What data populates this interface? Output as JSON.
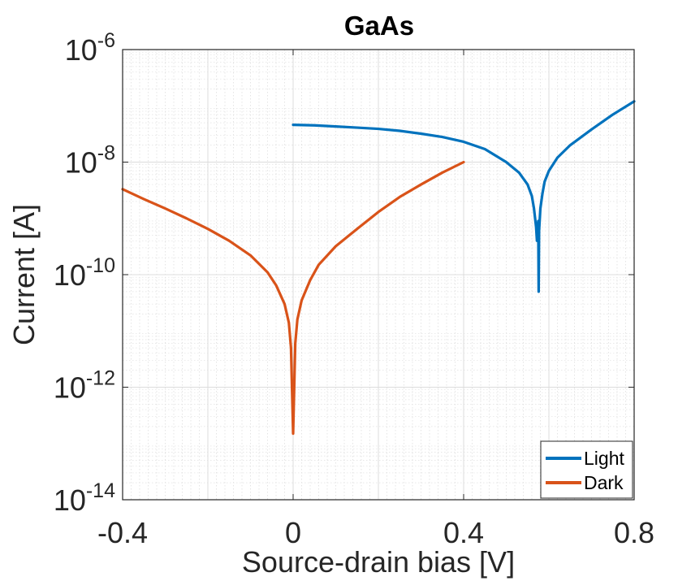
{
  "chart_data": {
    "type": "line",
    "title": "GaAs",
    "xlabel": "Source-drain bias [V]",
    "ylabel": "Current [A]",
    "xlim": [
      -0.4,
      0.8
    ],
    "ylim": [
      1e-14,
      1e-06
    ],
    "yscale": "log",
    "grid": true,
    "minor_grid": true,
    "x_ticks": [
      -0.4,
      0,
      0.4,
      0.8
    ],
    "x_tick_labels": [
      "-0.4",
      "0",
      "0.4",
      "0.8"
    ],
    "y_ticks": [
      1e-14,
      1e-12,
      1e-10,
      1e-08,
      1e-06
    ],
    "y_tick_labels": [
      {
        "base": "10",
        "exp": "-14"
      },
      {
        "base": "10",
        "exp": "-12"
      },
      {
        "base": "10",
        "exp": "-10"
      },
      {
        "base": "10",
        "exp": "-8"
      },
      {
        "base": "10",
        "exp": "-6"
      }
    ],
    "legend_position": "bottom-right",
    "series": [
      {
        "name": "Light",
        "color": "#0072BD",
        "points": [
          [
            0.0,
            4.6e-08
          ],
          [
            0.05,
            4.5e-08
          ],
          [
            0.1,
            4.3e-08
          ],
          [
            0.15,
            4.1e-08
          ],
          [
            0.2,
            3.9e-08
          ],
          [
            0.25,
            3.6e-08
          ],
          [
            0.3,
            3.2e-08
          ],
          [
            0.35,
            2.8e-08
          ],
          [
            0.4,
            2.3e-08
          ],
          [
            0.45,
            1.7e-08
          ],
          [
            0.5,
            1e-08
          ],
          [
            0.53,
            6.5e-09
          ],
          [
            0.55,
            4e-09
          ],
          [
            0.56,
            2.5e-09
          ],
          [
            0.565,
            1.5e-09
          ],
          [
            0.57,
            7e-10
          ],
          [
            0.572,
            4e-10
          ],
          [
            0.575,
            9e-10
          ],
          [
            0.576,
            5e-11
          ],
          [
            0.577,
            6e-10
          ],
          [
            0.58,
            1.5e-09
          ],
          [
            0.585,
            2.8e-09
          ],
          [
            0.59,
            4.5e-09
          ],
          [
            0.6,
            7e-09
          ],
          [
            0.62,
            1.2e-08
          ],
          [
            0.65,
            2e-08
          ],
          [
            0.7,
            3.8e-08
          ],
          [
            0.75,
            7e-08
          ],
          [
            0.8,
            1.2e-07
          ]
        ]
      },
      {
        "name": "Dark",
        "color": "#D95319",
        "points": [
          [
            -0.4,
            3.3e-09
          ],
          [
            -0.35,
            2.2e-09
          ],
          [
            -0.3,
            1.5e-09
          ],
          [
            -0.25,
            1e-09
          ],
          [
            -0.2,
            6.5e-10
          ],
          [
            -0.15,
            4e-10
          ],
          [
            -0.1,
            2.2e-10
          ],
          [
            -0.06,
            1.1e-10
          ],
          [
            -0.04,
            6.5e-11
          ],
          [
            -0.02,
            3e-11
          ],
          [
            -0.01,
            1.4e-11
          ],
          [
            -0.005,
            5e-12
          ],
          [
            0.0,
            1.5e-13
          ],
          [
            0.005,
            6e-12
          ],
          [
            0.01,
            1.6e-11
          ],
          [
            0.02,
            3.5e-11
          ],
          [
            0.04,
            8e-11
          ],
          [
            0.06,
            1.5e-10
          ],
          [
            0.1,
            3.2e-10
          ],
          [
            0.15,
            6.5e-10
          ],
          [
            0.2,
            1.3e-09
          ],
          [
            0.25,
            2.4e-09
          ],
          [
            0.3,
            4e-09
          ],
          [
            0.35,
            6.5e-09
          ],
          [
            0.4,
            1e-08
          ]
        ]
      }
    ]
  }
}
